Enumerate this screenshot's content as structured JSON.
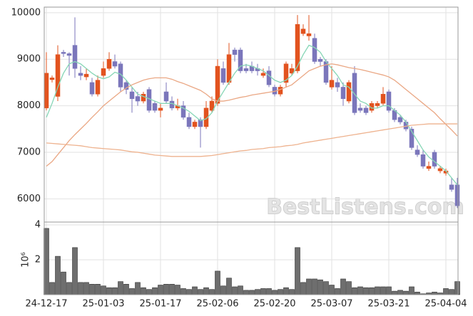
{
  "chart_data": [
    {
      "type": "candlestick",
      "up_color": "#e2531f",
      "down_color": "#7b76bb",
      "open": [
        7950,
        8560,
        8200,
        9150,
        9120,
        9300,
        8700,
        8620,
        8500,
        8250,
        8650,
        8800,
        8950,
        8900,
        8500,
        8300,
        8200,
        8100,
        8350,
        8050,
        7900,
        8300,
        8100,
        7950,
        8000,
        7750,
        7550,
        7700,
        7550,
        7900,
        8050,
        8800,
        8500,
        9200,
        9200,
        8800,
        8850,
        8800,
        8650,
        8750,
        8400,
        8250,
        8500,
        8700,
        8750,
        9550,
        9500,
        9450,
        9000,
        8950,
        8400,
        8500,
        8400,
        8100,
        8700,
        7950,
        7950,
        7900,
        8000,
        8050,
        8300,
        7900,
        7750,
        7650,
        7500,
        7050,
        6950,
        6650,
        7000,
        6600,
        6550,
        6300,
        6300
      ],
      "high": [
        9150,
        8650,
        9300,
        9200,
        9150,
        9900,
        8850,
        8800,
        8600,
        8650,
        8950,
        9150,
        9100,
        8950,
        8550,
        8400,
        8300,
        8300,
        8400,
        8100,
        8050,
        8500,
        8200,
        8150,
        8100,
        7850,
        7700,
        7750,
        8100,
        8200,
        9000,
        8950,
        9350,
        9250,
        9250,
        8900,
        8950,
        8900,
        8800,
        8850,
        8450,
        8450,
        8950,
        8900,
        9950,
        9750,
        9950,
        9550,
        9050,
        9000,
        8850,
        8600,
        8500,
        8550,
        8850,
        8050,
        8000,
        8100,
        8100,
        8400,
        8350,
        7950,
        7800,
        7700,
        7550,
        7150,
        7050,
        6800,
        7050,
        6700,
        6650,
        6450,
        6450
      ],
      "low": [
        7900,
        8500,
        8100,
        9050,
        8650,
        8600,
        8550,
        8550,
        8200,
        8200,
        8600,
        8750,
        8800,
        8300,
        8250,
        7850,
        8000,
        8050,
        7850,
        7850,
        7750,
        8050,
        7900,
        7900,
        7700,
        7500,
        7500,
        7100,
        7500,
        7850,
        8000,
        8450,
        8450,
        8950,
        8700,
        8700,
        8700,
        8650,
        8600,
        8400,
        8200,
        8200,
        8400,
        8650,
        8700,
        9500,
        9400,
        8900,
        8850,
        8450,
        8350,
        8300,
        8000,
        8050,
        7800,
        7850,
        7800,
        7850,
        7950,
        8000,
        7850,
        7650,
        7600,
        7450,
        7050,
        6900,
        6650,
        6600,
        6650,
        6550,
        6500,
        6150,
        5800
      ],
      "close": [
        8700,
        8600,
        9100,
        9120,
        9080,
        8800,
        8650,
        8680,
        8250,
        8550,
        8800,
        9000,
        8850,
        8400,
        8350,
        8150,
        8100,
        8250,
        7900,
        7900,
        7950,
        8100,
        7950,
        8000,
        7750,
        7550,
        7650,
        7550,
        7950,
        8100,
        8850,
        8500,
        9100,
        9100,
        8750,
        8750,
        8750,
        8750,
        8700,
        8450,
        8250,
        8400,
        8900,
        8800,
        9750,
        9650,
        9550,
        8950,
        8950,
        8500,
        8550,
        8400,
        8150,
        8500,
        7850,
        7900,
        7850,
        8050,
        8050,
        8250,
        7900,
        7700,
        7650,
        7500,
        7100,
        6950,
        6700,
        6700,
        6700,
        6650,
        6600,
        6200,
        5850
      ],
      "lines": [
        {
          "color": "#86d6b6",
          "values": [
            7750,
            8050,
            8400,
            8700,
            8900,
            8950,
            8900,
            8800,
            8700,
            8620,
            8580,
            8620,
            8720,
            8680,
            8550,
            8400,
            8250,
            8200,
            8150,
            8100,
            8050,
            8050,
            8050,
            8000,
            7950,
            7880,
            7780,
            7680,
            7720,
            7850,
            8100,
            8300,
            8500,
            8700,
            8850,
            8880,
            8850,
            8800,
            8750,
            8650,
            8550,
            8500,
            8550,
            8650,
            8850,
            9100,
            9300,
            9250,
            9150,
            8950,
            8800,
            8650,
            8450,
            8400,
            8250,
            8100,
            8050,
            7950,
            7950,
            8000,
            8000,
            7900,
            7800,
            7650,
            7450,
            7250,
            7050,
            6900,
            6800,
            6700,
            6600,
            6450,
            6300
          ]
        },
        {
          "color": "#eaa784",
          "values": [
            6700,
            6800,
            6950,
            7100,
            7250,
            7380,
            7500,
            7620,
            7750,
            7870,
            8000,
            8100,
            8200,
            8300,
            8380,
            8450,
            8500,
            8550,
            8580,
            8600,
            8600,
            8600,
            8570,
            8520,
            8480,
            8430,
            8380,
            8330,
            8250,
            8150,
            8100,
            8100,
            8120,
            8150,
            8180,
            8200,
            8230,
            8250,
            8270,
            8290,
            8310,
            8350,
            8400,
            8450,
            8550,
            8650,
            8750,
            8800,
            8850,
            8880,
            8900,
            8880,
            8850,
            8820,
            8800,
            8780,
            8750,
            8720,
            8690,
            8660,
            8620,
            8550,
            8450,
            8350,
            8250,
            8150,
            8050,
            7950,
            7850,
            7720,
            7600,
            7480,
            7350
          ]
        },
        {
          "color": "#eeb28e",
          "values": [
            7200,
            7190,
            7180,
            7170,
            7160,
            7150,
            7140,
            7120,
            7100,
            7090,
            7080,
            7070,
            7060,
            7050,
            7030,
            7010,
            7000,
            6980,
            6960,
            6940,
            6930,
            6920,
            6910,
            6910,
            6910,
            6910,
            6910,
            6910,
            6920,
            6930,
            6950,
            6970,
            6990,
            7010,
            7030,
            7040,
            7060,
            7070,
            7080,
            7100,
            7110,
            7120,
            7140,
            7150,
            7170,
            7200,
            7220,
            7240,
            7260,
            7280,
            7300,
            7320,
            7340,
            7360,
            7380,
            7400,
            7420,
            7440,
            7460,
            7480,
            7500,
            7520,
            7540,
            7560,
            7580,
            7590,
            7600,
            7610,
            7610,
            7610,
            7610,
            7610,
            7610
          ]
        }
      ],
      "ylim": [
        5500,
        10120
      ],
      "yticks": [
        6000,
        7000,
        8000,
        9000,
        10000
      ],
      "grid": true,
      "watermark": "BestListens.com"
    },
    {
      "type": "bar",
      "color": "#6e6e6e",
      "categories": [
        "24-12-17",
        null,
        null,
        null,
        null,
        null,
        null,
        null,
        null,
        null,
        "25-01-03",
        null,
        null,
        null,
        null,
        null,
        null,
        null,
        null,
        null,
        "25-01-17",
        null,
        null,
        null,
        null,
        null,
        null,
        null,
        null,
        null,
        "25-02-06",
        null,
        null,
        null,
        null,
        null,
        null,
        null,
        null,
        null,
        "25-02-20",
        null,
        null,
        null,
        null,
        null,
        null,
        null,
        null,
        null,
        "25-03-07",
        null,
        null,
        null,
        null,
        null,
        null,
        null,
        null,
        null,
        "25-03-21",
        null,
        null,
        null,
        null,
        null,
        null,
        null,
        null,
        null,
        "25-04-04",
        null,
        null
      ],
      "values": [
        3.8,
        0.7,
        2.2,
        1.3,
        0.7,
        2.7,
        0.7,
        0.7,
        0.6,
        0.6,
        0.5,
        0.4,
        0.4,
        0.75,
        0.6,
        0.35,
        0.7,
        0.4,
        0.3,
        0.4,
        0.55,
        0.6,
        0.6,
        0.55,
        0.35,
        0.3,
        0.45,
        0.3,
        0.4,
        0.3,
        1.35,
        0.5,
        0.95,
        0.45,
        0.5,
        0.25,
        0.25,
        0.3,
        0.35,
        0.35,
        0.25,
        0.3,
        0.4,
        0.3,
        2.7,
        0.7,
        0.9,
        0.9,
        0.85,
        0.75,
        0.55,
        0.35,
        0.9,
        0.75,
        0.4,
        0.45,
        0.4,
        0.4,
        0.45,
        0.45,
        0.45,
        0.2,
        0.25,
        0.2,
        0.45,
        0.15,
        0.05,
        0.1,
        0.15,
        0.1,
        0.35,
        0.3,
        0.75
      ],
      "ylim": [
        0,
        4
      ],
      "yticks": [
        2,
        4
      ],
      "y_label": "10⁶",
      "grid": true
    }
  ]
}
